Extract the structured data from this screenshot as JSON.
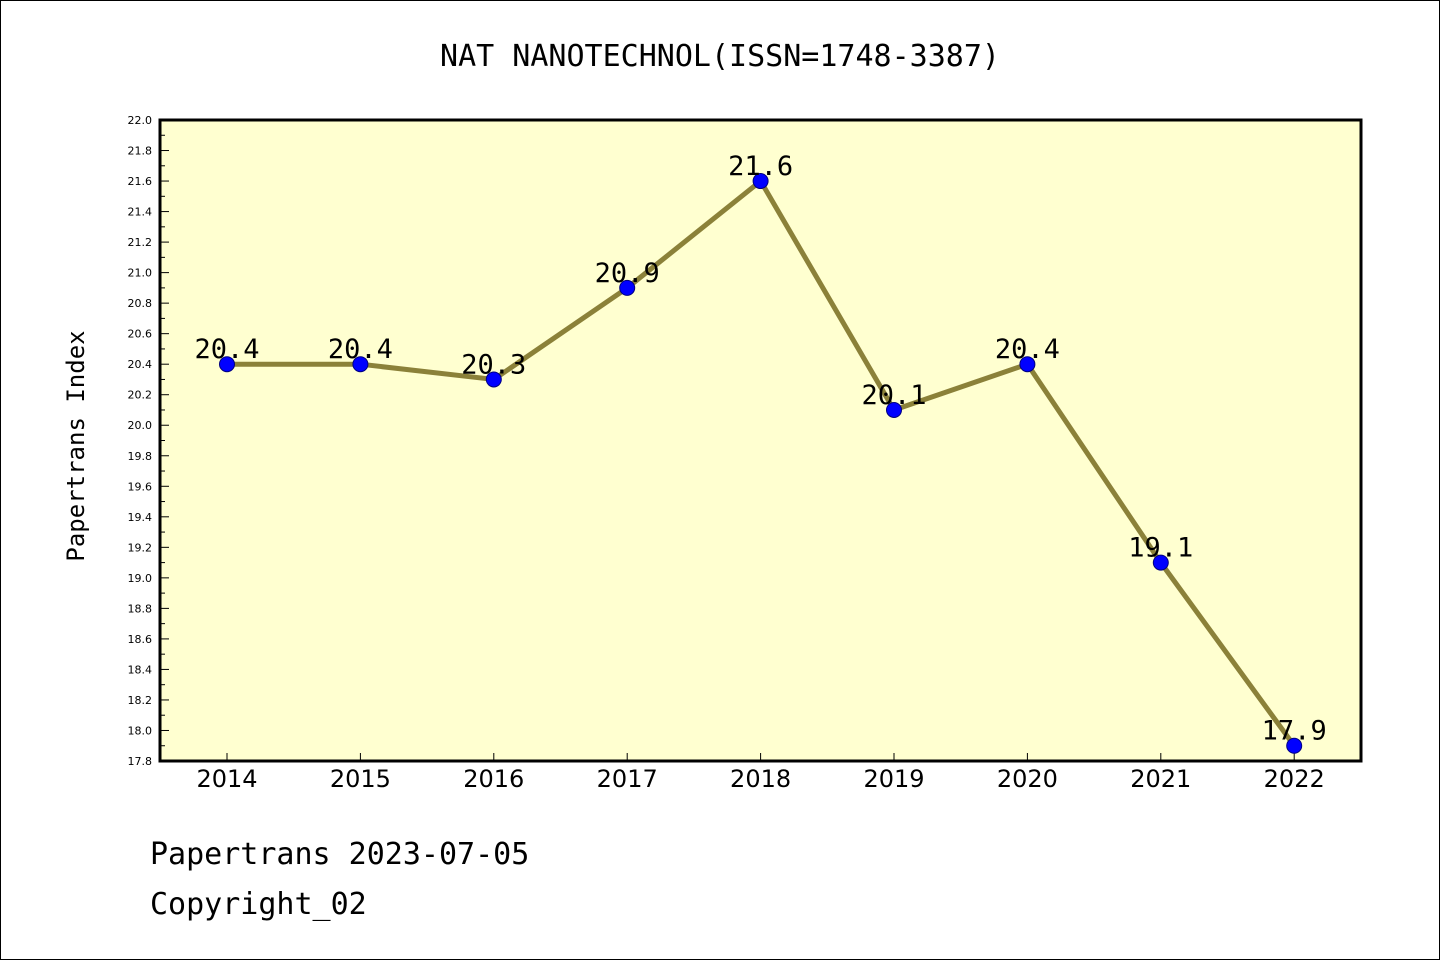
{
  "chart_data": {
    "type": "line",
    "title": "NAT NANOTECHNOL(ISSN=1748-3387)",
    "xlabel": "",
    "ylabel": "Papertrans Index",
    "categories": [
      "2014",
      "2015",
      "2016",
      "2017",
      "2018",
      "2019",
      "2020",
      "2021",
      "2022"
    ],
    "series": [
      {
        "values": [
          20.4,
          20.4,
          20.3,
          20.9,
          21.6,
          20.1,
          20.4,
          19.1,
          17.9
        ]
      }
    ],
    "data_labels": [
      "20.4",
      "20.4",
      "20.3",
      "20.9",
      "21.6",
      "20.1",
      "20.4",
      "19.1",
      "17.9"
    ],
    "ylim": [
      17.8,
      22.0
    ],
    "yticks": [
      "17.8",
      "18.0",
      "18.2",
      "18.4",
      "18.6",
      "18.8",
      "19.0",
      "19.2",
      "19.4",
      "19.6",
      "19.8",
      "20.0",
      "20.2",
      "20.4",
      "20.6",
      "20.8",
      "21.0",
      "21.2",
      "21.4",
      "21.6",
      "21.8",
      "22.0"
    ],
    "grid": false,
    "legend": "none",
    "colors": {
      "plot_background": "#ffffd0",
      "line": "#8b8139",
      "marker": "#0000ff",
      "marker_edge": "#000080"
    }
  },
  "footer": {
    "line1": "Papertrans 2023-07-05",
    "line2": "Copyright_02"
  }
}
